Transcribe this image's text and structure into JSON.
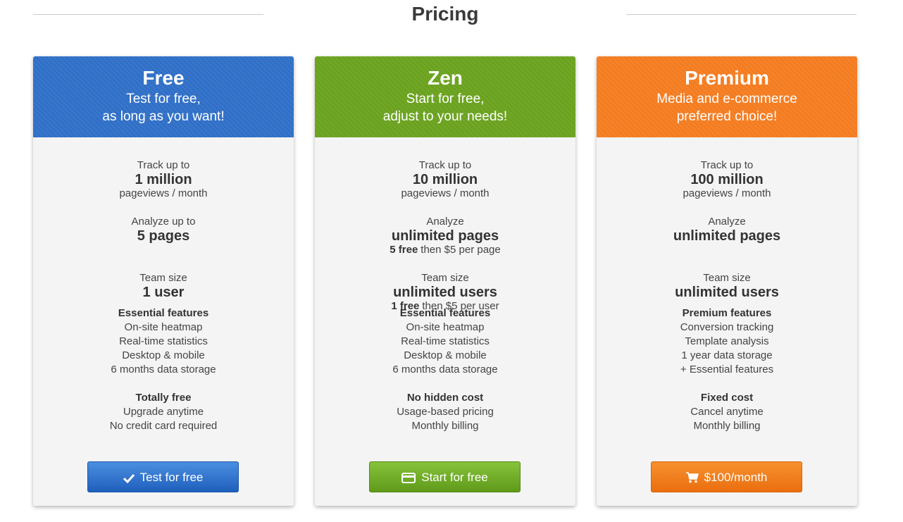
{
  "title": "Pricing",
  "plans": [
    {
      "name": "Free",
      "tagline": [
        "Test for free,",
        "as long as you want!"
      ],
      "quotas": [
        {
          "label": "Track up to",
          "value": "1 million",
          "note": "pageviews / month"
        },
        {
          "label": "Analyze up to",
          "value": "5 pages"
        },
        {
          "label": "Team size",
          "value": "1 user"
        }
      ],
      "groups": [
        {
          "title": "Essential features",
          "items": [
            "On-site heatmap",
            "Real-time statistics",
            "Desktop & mobile",
            "6 months data storage"
          ]
        },
        {
          "title": "Totally free",
          "items": [
            "Upgrade anytime",
            "No credit card required"
          ]
        }
      ],
      "button": "Test for free"
    },
    {
      "name": "Zen",
      "tagline": [
        "Start for free,",
        "adjust to your needs!"
      ],
      "quotas": [
        {
          "label": "Track up to",
          "value": "10 million",
          "note": "pageviews / month"
        },
        {
          "label": "Analyze",
          "value": "unlimited pages",
          "note_bold": "5 free",
          "note": "then $5 per page"
        },
        {
          "label": "Team size",
          "value": "unlimited users",
          "note_bold": "1 free",
          "note": "then $5 per user"
        }
      ],
      "groups": [
        {
          "title": "Essential features",
          "items": [
            "On-site heatmap",
            "Real-time statistics",
            "Desktop & mobile",
            "6 months data storage"
          ]
        },
        {
          "title": "No hidden cost",
          "items": [
            "Usage-based pricing",
            "Monthly billing"
          ]
        }
      ],
      "button": "Start for free"
    },
    {
      "name": "Premium",
      "tagline": [
        "Media and e-commerce",
        "preferred choice!"
      ],
      "quotas": [
        {
          "label": "Track up to",
          "value": "100 million",
          "note": "pageviews / month"
        },
        {
          "label": "Analyze",
          "value": "unlimited pages"
        },
        {
          "label": "Team size",
          "value": "unlimited users"
        }
      ],
      "groups": [
        {
          "title": "Premium features",
          "items": [
            "Conversion tracking",
            "Template analysis",
            "1 year data storage",
            "+ Essential features"
          ]
        },
        {
          "title": "Fixed cost",
          "items": [
            "Cancel anytime",
            "Monthly billing"
          ]
        }
      ],
      "button": "$100/month"
    }
  ]
}
